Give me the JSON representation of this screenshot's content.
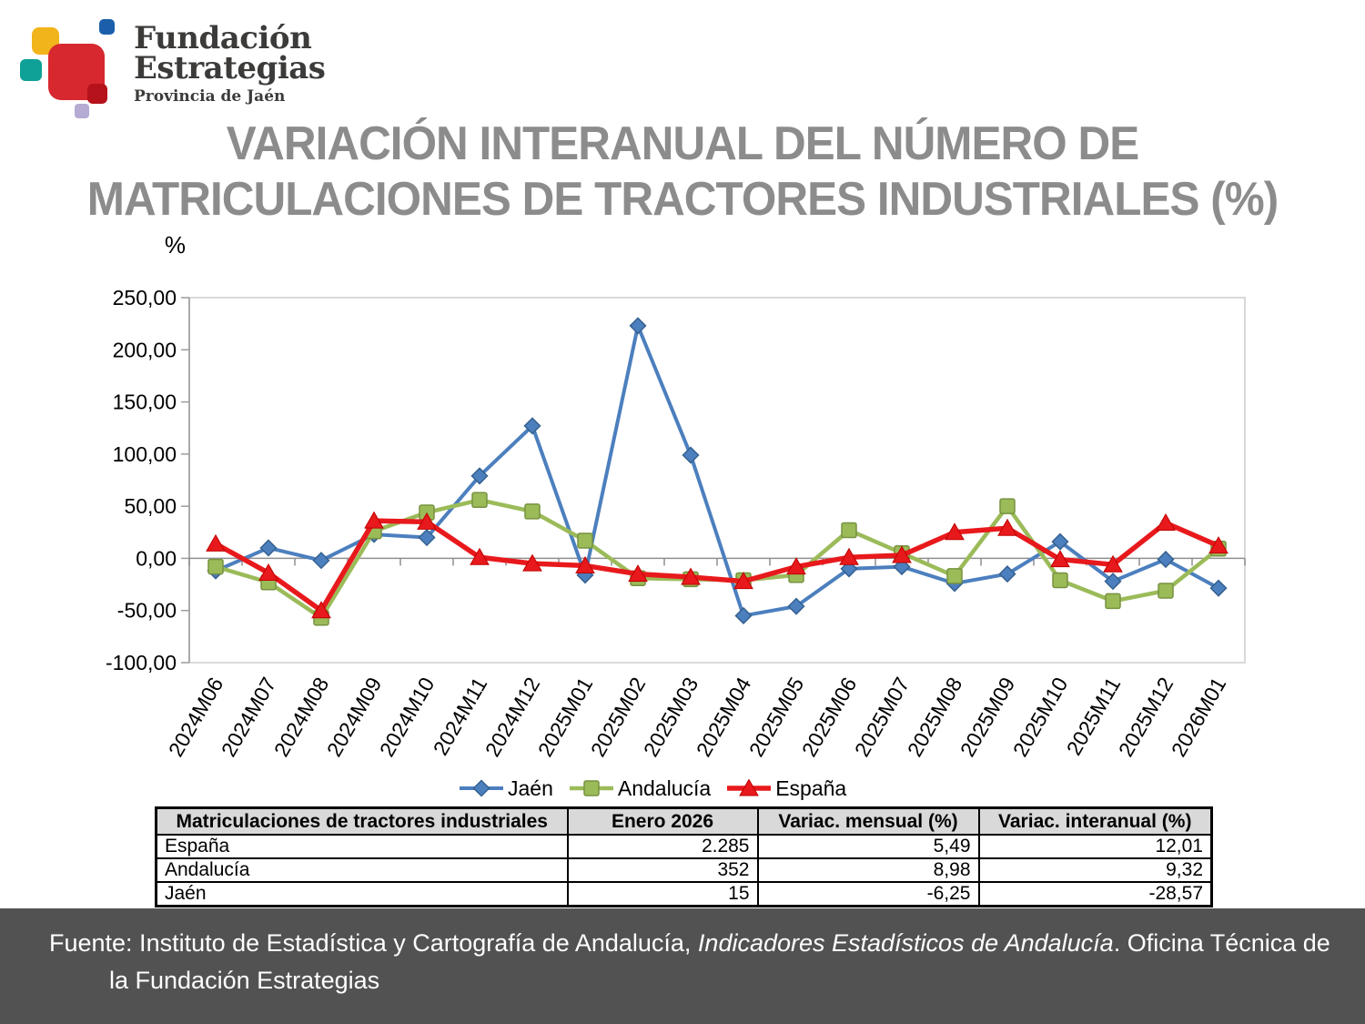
{
  "logo": {
    "name_line1": "Fundación",
    "name_line2": "Estrategias",
    "subtitle": "Provincia de Jaén",
    "colors": {
      "yellow": "#f2b41b",
      "blue": "#1b5faa",
      "teal": "#0fa097",
      "big_red": "#d7282f",
      "small_red": "#b5121b",
      "lavender": "#b5abd3"
    }
  },
  "title": {
    "line1": "VARIACIÓN INTERANUAL DEL NÚMERO DE",
    "line2": "MATRICULACIONES DE TRACTORES INDUSTRIALES (%)"
  },
  "chart_data": {
    "type": "line",
    "y_axis_title": "%",
    "ylim": [
      -100,
      250
    ],
    "y_tick_step": 50,
    "grid": false,
    "legend_position": "bottom",
    "categories": [
      "2024M06",
      "2024M07",
      "2024M08",
      "2024M09",
      "2024M10",
      "2024M11",
      "2024M12",
      "2025M01",
      "2025M02",
      "2025M03",
      "2025M04",
      "2025M05",
      "2025M06",
      "2025M07",
      "2025M08",
      "2025M09",
      "2025M10",
      "2025M11",
      "2025M12",
      "2026M01"
    ],
    "series": [
      {
        "name": "Jaén",
        "marker": "diamond",
        "color": "#4c7fbe",
        "edge": "#35618f",
        "values": [
          -12,
          10,
          -2,
          23,
          20,
          79,
          127,
          -16,
          223,
          99,
          -55,
          -46,
          -10,
          -8,
          -24,
          -15,
          16,
          -22,
          -1,
          -28.57
        ]
      },
      {
        "name": "Andalucía",
        "marker": "square",
        "color": "#9bbb59",
        "edge": "#77923f",
        "values": [
          -8,
          -23,
          -57,
          26,
          44,
          56,
          45,
          17,
          -19,
          -20,
          -21,
          -16,
          27,
          5,
          -17,
          50,
          -21,
          -41,
          -31,
          9.32
        ]
      },
      {
        "name": "España",
        "marker": "triangle",
        "color": "#e8191c",
        "edge": "#c00000",
        "values": [
          14,
          -14,
          -50,
          36,
          35,
          1,
          -5,
          -7,
          -15,
          -18,
          -22,
          -8,
          1,
          3,
          25,
          29,
          -1,
          -6,
          34,
          12.01
        ]
      }
    ]
  },
  "table": {
    "headers": [
      "Matriculaciones de tractores industriales",
      "Enero 2026",
      "Variac. mensual (%)",
      "Variac. interanual (%)"
    ],
    "rows": [
      {
        "name": "España",
        "enero": "2.285",
        "mensual": "5,49",
        "interanual": "12,01"
      },
      {
        "name": "Andalucía",
        "enero": "352",
        "mensual": "8,98",
        "interanual": "9,32"
      },
      {
        "name": "Jaén",
        "enero": "15",
        "mensual": "-6,25",
        "interanual": "-28,57"
      }
    ]
  },
  "footer": {
    "line1_prefix": "Fuente: Instituto de Estadística y Cartografía de Andalucía, ",
    "line1_italic": "Indicadores Estadísticos de Andalucía",
    "line1_suffix": ". Oficina Técnica de",
    "line2": "la Fundación Estrategias",
    "bg_color": "#525252"
  }
}
